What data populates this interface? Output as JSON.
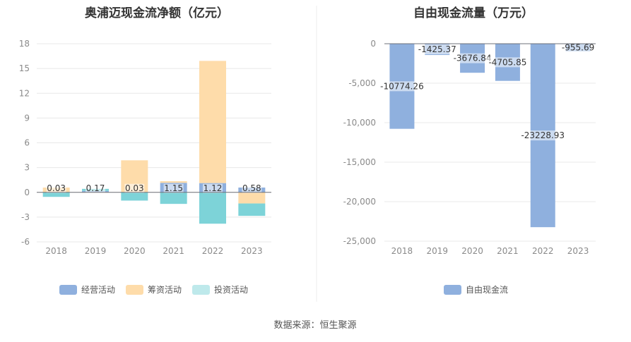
{
  "source": "数据来源：恒生聚源",
  "colors": {
    "operating": "#8fb0de",
    "financing": "#fedcaa",
    "investing": "#7dd3d8",
    "grid": "#e8e8e8",
    "axis": "#6e7079"
  },
  "chart_data": [
    {
      "type": "bar",
      "stacked": true,
      "title": "奥浦迈现金流净额（亿元）",
      "categories": [
        "2018",
        "2019",
        "2020",
        "2021",
        "2022",
        "2023"
      ],
      "ylim": [
        -6,
        18
      ],
      "yticks": [
        "18",
        "15",
        "12",
        "9",
        "6",
        "3",
        "0",
        "-3",
        "-6"
      ],
      "grid": true,
      "legend_position": "bottom",
      "series": [
        {
          "name": "经营活动",
          "values": [
            0.03,
            0.17,
            0.03,
            1.15,
            1.12,
            0.58
          ],
          "labels": [
            "0.03",
            "0.17",
            "0.03",
            "1.15",
            "1.12",
            "0.58"
          ]
        },
        {
          "name": "筹资活动",
          "values": [
            0.55,
            -0.05,
            3.85,
            0.2,
            14.8,
            -1.35
          ]
        },
        {
          "name": "投资活动",
          "values": [
            -0.55,
            0.25,
            -1.0,
            -1.4,
            -3.8,
            -1.5
          ]
        }
      ]
    },
    {
      "type": "bar",
      "title": "自由现金流量（万元）",
      "categories": [
        "2018",
        "2019",
        "2020",
        "2021",
        "2022",
        "2023"
      ],
      "ylim": [
        -25000,
        0
      ],
      "yticks": [
        "0",
        "-5,000",
        "-10,000",
        "-15,000",
        "-20,000",
        "-25,000"
      ],
      "grid": true,
      "legend_position": "bottom",
      "series": [
        {
          "name": "自由现金流",
          "values": [
            -10774.26,
            -1425.37,
            -3676.84,
            -4705.85,
            -23228.93,
            -955.69
          ],
          "labels": [
            "-10774.26",
            "-1425.37",
            "-3676.84",
            "-4705.85",
            "-23228.93",
            "-955.69"
          ]
        }
      ]
    }
  ]
}
